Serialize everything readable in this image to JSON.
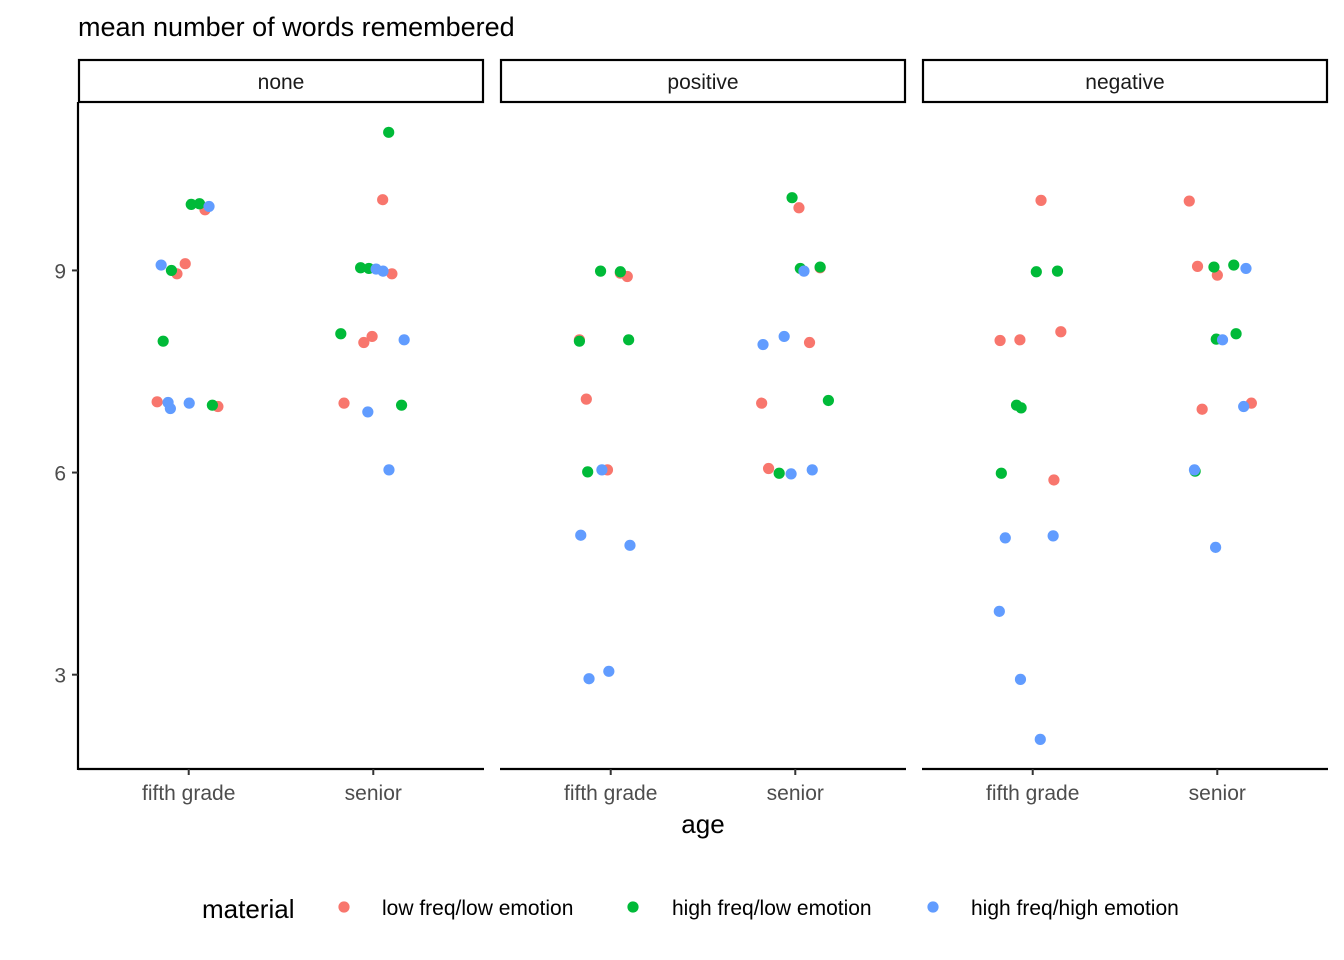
{
  "chart_data": {
    "type": "scatter",
    "title": "",
    "ylabel": "mean number of words remembered",
    "xlabel": "age",
    "ylim": [
      1.6,
      11.5
    ],
    "y_ticks": [
      3,
      6,
      9
    ],
    "categories": [
      "fifth grade",
      "senior"
    ],
    "facets": [
      "none",
      "positive",
      "negative"
    ],
    "grid": false,
    "jitter": true,
    "legend": {
      "title": "material",
      "position": "bottom",
      "entries": [
        {
          "name": "low freq/low emotion",
          "color": "#F8766D"
        },
        {
          "name": "high freq/low emotion",
          "color": "#00BA38"
        },
        {
          "name": "high freq/high emotion",
          "color": "#619CFF"
        }
      ]
    },
    "panels": [
      {
        "facet": "none",
        "series": [
          {
            "name": "low freq/low emotion",
            "points": [
              {
                "x": "fifth grade",
                "y": 9.9
              },
              {
                "x": "fifth grade",
                "y": 9.1
              },
              {
                "x": "fifth grade",
                "y": 8.95
              },
              {
                "x": "fifth grade",
                "y": 7.05
              },
              {
                "x": "fifth grade",
                "y": 6.98
              },
              {
                "x": "senior",
                "y": 10.05
              },
              {
                "x": "senior",
                "y": 8.95
              },
              {
                "x": "senior",
                "y": 8.02
              },
              {
                "x": "senior",
                "y": 7.93
              },
              {
                "x": "senior",
                "y": 7.03
              }
            ]
          },
          {
            "name": "high freq/low emotion",
            "points": [
              {
                "x": "fifth grade",
                "y": 9.99
              },
              {
                "x": "fifth grade",
                "y": 9.98
              },
              {
                "x": "fifth grade",
                "y": 9.0
              },
              {
                "x": "fifth grade",
                "y": 7.95
              },
              {
                "x": "fifth grade",
                "y": 7.0
              },
              {
                "x": "senior",
                "y": 11.05
              },
              {
                "x": "senior",
                "y": 9.03
              },
              {
                "x": "senior",
                "y": 9.04
              },
              {
                "x": "senior",
                "y": 8.06
              },
              {
                "x": "senior",
                "y": 7.0
              }
            ]
          },
          {
            "name": "high freq/high emotion",
            "points": [
              {
                "x": "fifth grade",
                "y": 9.95
              },
              {
                "x": "fifth grade",
                "y": 9.08
              },
              {
                "x": "fifth grade",
                "y": 7.04
              },
              {
                "x": "fifth grade",
                "y": 7.03
              },
              {
                "x": "fifth grade",
                "y": 6.95
              },
              {
                "x": "senior",
                "y": 9.02
              },
              {
                "x": "senior",
                "y": 8.99
              },
              {
                "x": "senior",
                "y": 7.97
              },
              {
                "x": "senior",
                "y": 6.9
              },
              {
                "x": "senior",
                "y": 6.04
              }
            ]
          }
        ]
      },
      {
        "facet": "positive",
        "series": [
          {
            "name": "low freq/low emotion",
            "points": [
              {
                "x": "fifth grade",
                "y": 8.96
              },
              {
                "x": "fifth grade",
                "y": 8.91
              },
              {
                "x": "fifth grade",
                "y": 7.97
              },
              {
                "x": "fifth grade",
                "y": 7.09
              },
              {
                "x": "fifth grade",
                "y": 6.04
              },
              {
                "x": "senior",
                "y": 9.93
              },
              {
                "x": "senior",
                "y": 9.04
              },
              {
                "x": "senior",
                "y": 7.93
              },
              {
                "x": "senior",
                "y": 7.03
              },
              {
                "x": "senior",
                "y": 6.06
              }
            ]
          },
          {
            "name": "high freq/low emotion",
            "points": [
              {
                "x": "fifth grade",
                "y": 8.99
              },
              {
                "x": "fifth grade",
                "y": 8.98
              },
              {
                "x": "fifth grade",
                "y": 7.97
              },
              {
                "x": "fifth grade",
                "y": 7.95
              },
              {
                "x": "fifth grade",
                "y": 6.01
              },
              {
                "x": "senior",
                "y": 10.08
              },
              {
                "x": "senior",
                "y": 9.03
              },
              {
                "x": "senior",
                "y": 9.05
              },
              {
                "x": "senior",
                "y": 7.07
              },
              {
                "x": "senior",
                "y": 5.99
              }
            ]
          },
          {
            "name": "high freq/high emotion",
            "points": [
              {
                "x": "fifth grade",
                "y": 6.04
              },
              {
                "x": "fifth grade",
                "y": 5.07
              },
              {
                "x": "fifth grade",
                "y": 4.92
              },
              {
                "x": "fifth grade",
                "y": 3.05
              },
              {
                "x": "fifth grade",
                "y": 2.94
              },
              {
                "x": "senior",
                "y": 8.99
              },
              {
                "x": "senior",
                "y": 8.02
              },
              {
                "x": "senior",
                "y": 7.9
              },
              {
                "x": "senior",
                "y": 6.04
              },
              {
                "x": "senior",
                "y": 5.98
              }
            ]
          }
        ]
      },
      {
        "facet": "negative",
        "series": [
          {
            "name": "low freq/low emotion",
            "points": [
              {
                "x": "fifth grade",
                "y": 10.04
              },
              {
                "x": "fifth grade",
                "y": 8.09
              },
              {
                "x": "fifth grade",
                "y": 7.96
              },
              {
                "x": "fifth grade",
                "y": 7.97
              },
              {
                "x": "fifth grade",
                "y": 5.89
              },
              {
                "x": "senior",
                "y": 10.03
              },
              {
                "x": "senior",
                "y": 9.06
              },
              {
                "x": "senior",
                "y": 8.93
              },
              {
                "x": "senior",
                "y": 7.03
              },
              {
                "x": "senior",
                "y": 6.94
              }
            ]
          },
          {
            "name": "high freq/low emotion",
            "points": [
              {
                "x": "fifth grade",
                "y": 8.99
              },
              {
                "x": "fifth grade",
                "y": 8.98
              },
              {
                "x": "fifth grade",
                "y": 7.0
              },
              {
                "x": "fifth grade",
                "y": 6.96
              },
              {
                "x": "fifth grade",
                "y": 5.99
              },
              {
                "x": "senior",
                "y": 9.08
              },
              {
                "x": "senior",
                "y": 9.05
              },
              {
                "x": "senior",
                "y": 8.06
              },
              {
                "x": "senior",
                "y": 7.98
              },
              {
                "x": "senior",
                "y": 6.02
              }
            ]
          },
          {
            "name": "high freq/high emotion",
            "points": [
              {
                "x": "fifth grade",
                "y": 5.06
              },
              {
                "x": "fifth grade",
                "y": 5.03
              },
              {
                "x": "fifth grade",
                "y": 3.94
              },
              {
                "x": "fifth grade",
                "y": 2.93
              },
              {
                "x": "fifth grade",
                "y": 2.04
              },
              {
                "x": "senior",
                "y": 9.03
              },
              {
                "x": "senior",
                "y": 7.97
              },
              {
                "x": "senior",
                "y": 6.98
              },
              {
                "x": "senior",
                "y": 6.04
              },
              {
                "x": "senior",
                "y": 4.89
              }
            ]
          }
        ]
      }
    ]
  }
}
